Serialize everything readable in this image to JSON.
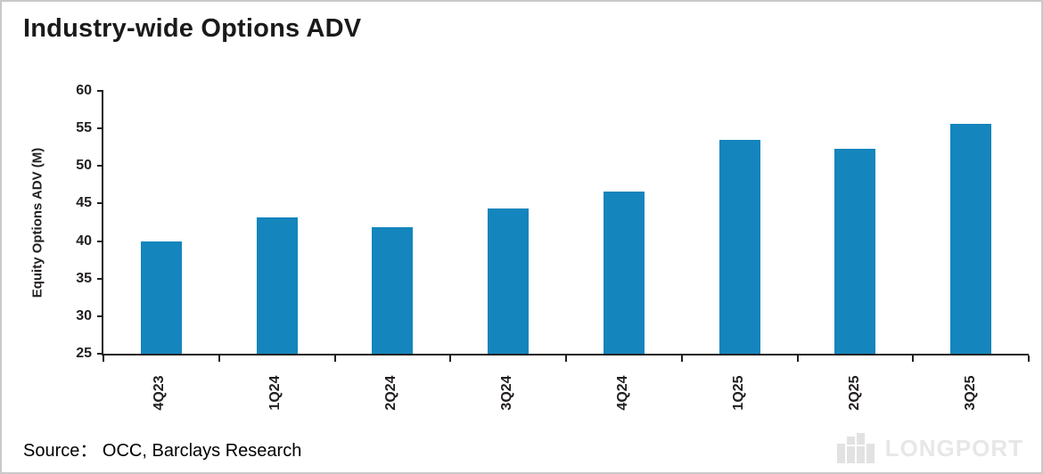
{
  "page": {
    "title": "Industry-wide Options ADV",
    "source": "Source：  OCC, Barclays Research",
    "watermark": "LONGPORT"
  },
  "colors": {
    "bar": "#1485bd",
    "axis": "#231f20",
    "title": "#1a1a1a",
    "watermark": "#e7e7e7",
    "border": "#c9c9c9"
  },
  "chart_data": {
    "type": "bar",
    "title": "Industry-wide Options ADV",
    "categories": [
      "4Q23",
      "1Q24",
      "2Q24",
      "3Q24",
      "4Q24",
      "1Q25",
      "2Q25",
      "3Q25"
    ],
    "values": [
      40.0,
      43.1,
      41.9,
      44.3,
      46.6,
      53.5,
      52.3,
      55.6
    ],
    "xlabel": "",
    "ylabel": "Equity Options ADV (M)",
    "ylim": [
      25,
      60
    ],
    "yticks": [
      25,
      30,
      35,
      40,
      45,
      50,
      55,
      60
    ],
    "grid": false,
    "legend": "none",
    "bar_color": "#1485bd"
  }
}
